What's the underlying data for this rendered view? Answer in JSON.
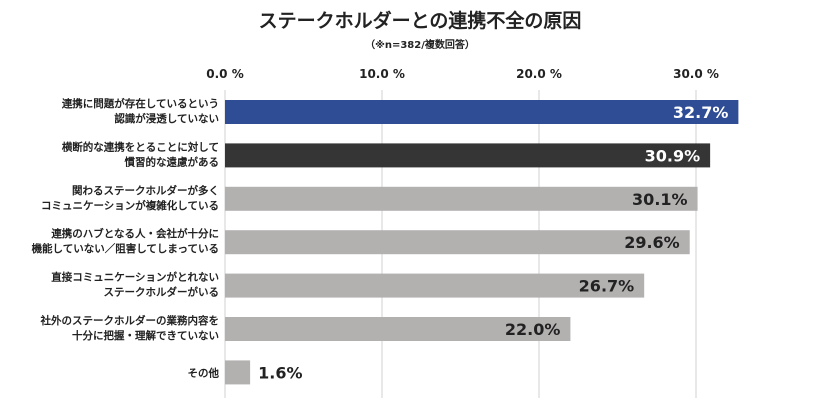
{
  "chart_data": {
    "type": "bar",
    "orientation": "horizontal",
    "title": "ステークホルダーとの連携不全の原因",
    "subtitle": "（※n=382/複数回答）",
    "categories": [
      [
        "連携に問題が存在しているという",
        "認識が浸透していない"
      ],
      [
        "横断的な連携をとることに対して",
        "慣習的な遠慮がある"
      ],
      [
        "関わるステークホルダーが多く",
        "コミュニケーションが複雑化している"
      ],
      [
        "連携のハブとなる人・会社が十分に",
        "機能していない／阻害してしまっている"
      ],
      [
        "直接コミュニケーションがとれない",
        "ステークホルダーがいる"
      ],
      [
        "社外のステークホルダーの業務内容を",
        "十分に把握・理解できていない"
      ],
      [
        "その他"
      ]
    ],
    "values": [
      32.7,
      30.9,
      30.1,
      29.6,
      26.7,
      22.0,
      1.6
    ],
    "value_labels": [
      "32.7%",
      "30.9%",
      "30.1%",
      "29.6%",
      "26.7%",
      "22.0%",
      "1.6%"
    ],
    "bar_colors": [
      "#2e4d95",
      "#353535",
      "#b3b0b0",
      "#b3b0b0",
      "#b3b0b0",
      "#b3b0b0",
      "#b3b0b0"
    ],
    "label_colors": [
      "#ffffff",
      "#ffffff",
      "#222222",
      "#222222",
      "#222222",
      "#222222",
      "#222222"
    ],
    "xlim": [
      0,
      33
    ],
    "xticks": [
      0,
      10,
      20,
      30
    ],
    "xtick_labels": [
      "0.0 %",
      "10.0 %",
      "20.0 %",
      "30.0 %"
    ],
    "grid": true,
    "legend": "none"
  }
}
